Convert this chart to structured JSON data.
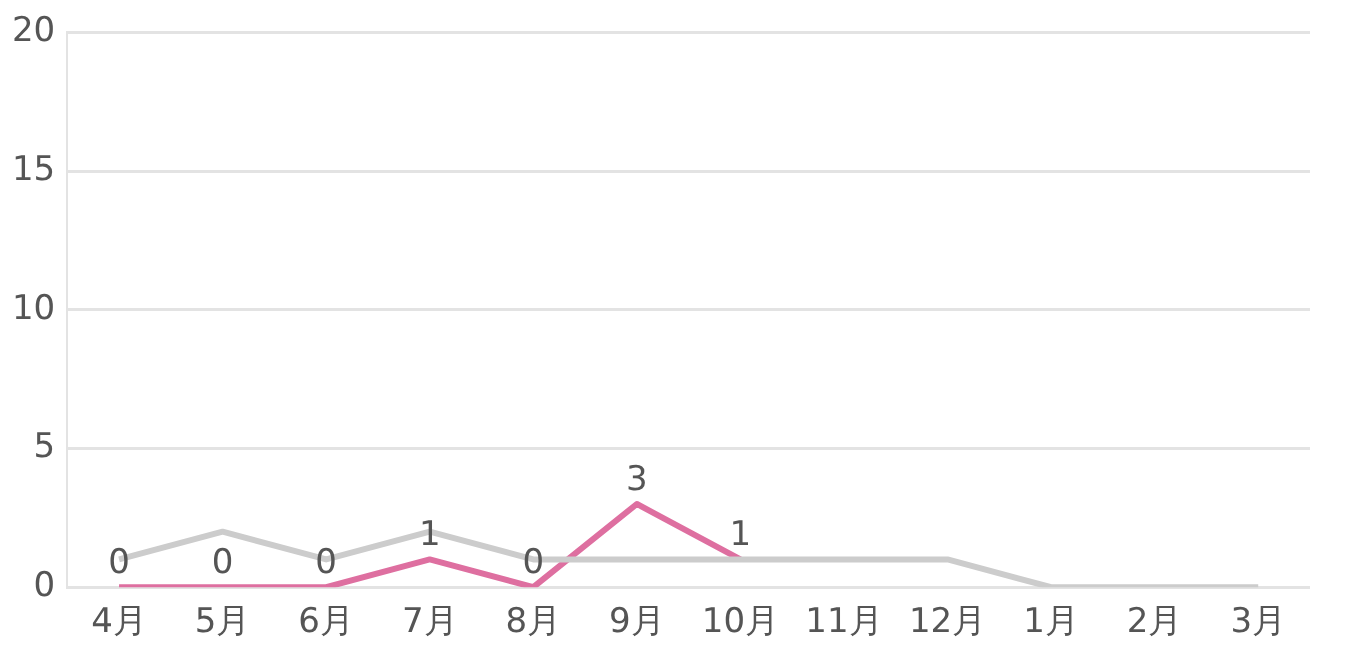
{
  "chart_data": {
    "type": "line",
    "categories": [
      "4月",
      "5月",
      "6月",
      "7月",
      "8月",
      "9月",
      "10月",
      "11月",
      "12月",
      "1月",
      "2月",
      "3月"
    ],
    "series": [
      {
        "color": "#cccccc",
        "values": [
          1,
          2,
          1,
          2,
          1,
          1,
          1,
          1,
          1,
          0,
          0,
          0
        ]
      },
      {
        "color": "#de6fa0",
        "values": [
          0,
          0,
          0,
          1,
          0,
          3,
          1,
          null,
          null,
          null,
          null,
          null
        ],
        "value_labels": [
          "0",
          "0",
          "0",
          "1",
          "0",
          "3",
          "1",
          null,
          null,
          null,
          null,
          null
        ]
      }
    ],
    "ylim": [
      0,
      20
    ],
    "yticks": [
      0,
      5,
      10,
      15,
      20
    ],
    "grid": "y",
    "legend": false,
    "marker": "none",
    "line_style": "solid"
  }
}
